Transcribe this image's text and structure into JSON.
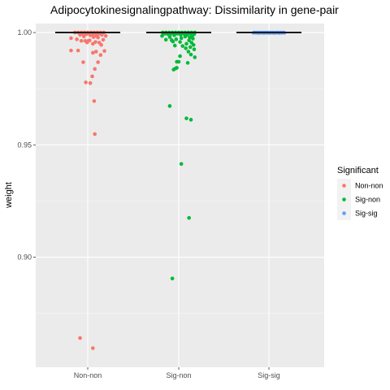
{
  "chart_data": {
    "type": "scatter",
    "title": "Adipocytokinesignalingpathway: Dissimilarity in gene-pair",
    "xlabel": "",
    "ylabel": "weight",
    "categories": [
      "Non-non",
      "Sig-non",
      "Sig-sig"
    ],
    "ylim": [
      0.851,
      1.004
    ],
    "yticks": [
      0.9,
      0.95,
      1.0
    ],
    "ytick_labels": [
      "0.90",
      "0.95",
      "1.00"
    ],
    "grid": true,
    "legend": {
      "title": "Significant",
      "placement": "right"
    },
    "medians": [
      1.0,
      1.0,
      1.0
    ],
    "series": [
      {
        "name": "Non-non",
        "color": "#F8766D",
        "category": "Non-non",
        "points": [
          [
            -0.05,
            1.0
          ],
          [
            0.0,
            1.0
          ],
          [
            0.05,
            1.0
          ],
          [
            0.1,
            1.0
          ],
          [
            0.15,
            1.0
          ],
          [
            -0.15,
            1.0
          ],
          [
            -0.1,
            1.0
          ],
          [
            0.2,
            1.0
          ],
          [
            -0.2,
            1.0
          ],
          [
            0.25,
            1.0
          ],
          [
            0.02,
            0.9995
          ],
          [
            -0.08,
            0.9995
          ],
          [
            0.12,
            0.9995
          ],
          [
            0.18,
            0.9995
          ],
          [
            -0.02,
            0.9993
          ],
          [
            0.07,
            0.9993
          ],
          [
            -0.12,
            0.999
          ],
          [
            0.22,
            0.999
          ],
          [
            0.04,
            0.9988
          ],
          [
            0.14,
            0.9985
          ],
          [
            0.28,
            0.9985
          ],
          [
            -0.06,
            0.9983
          ],
          [
            0.09,
            0.998
          ],
          [
            0.16,
            0.9978
          ],
          [
            -0.26,
            0.9975
          ],
          [
            -0.17,
            0.997
          ],
          [
            0.24,
            0.9968
          ],
          [
            0.03,
            0.9965
          ],
          [
            -0.1,
            0.9963
          ],
          [
            -0.04,
            0.9963
          ],
          [
            0.01,
            0.9963
          ],
          [
            0.12,
            0.9958
          ],
          [
            -0.01,
            0.9956
          ],
          [
            0.18,
            0.9955
          ],
          [
            0.08,
            0.995
          ],
          [
            0.21,
            0.9945
          ],
          [
            -0.26,
            0.992
          ],
          [
            -0.15,
            0.992
          ],
          [
            0.26,
            0.9918
          ],
          [
            0.13,
            0.9915
          ],
          [
            0.08,
            0.991
          ],
          [
            0.2,
            0.99
          ],
          [
            -0.07,
            0.9868
          ],
          [
            0.16,
            0.9868
          ],
          [
            0.11,
            0.9838
          ],
          [
            0.07,
            0.9805
          ],
          [
            -0.03,
            0.9778
          ],
          [
            0.04,
            0.9775
          ],
          [
            0.1,
            0.9695
          ],
          [
            0.11,
            0.9548
          ],
          [
            -0.12,
            0.864
          ],
          [
            0.08,
            0.8595
          ]
        ]
      },
      {
        "name": "Sig-non",
        "color": "#00BA38",
        "category": "Sig-non",
        "points": [
          [
            -0.25,
            1.0
          ],
          [
            -0.2,
            1.0
          ],
          [
            -0.15,
            1.0
          ],
          [
            -0.1,
            1.0
          ],
          [
            -0.05,
            1.0
          ],
          [
            0.0,
            1.0
          ],
          [
            0.05,
            1.0
          ],
          [
            0.1,
            1.0
          ],
          [
            0.15,
            1.0
          ],
          [
            0.2,
            1.0
          ],
          [
            0.25,
            1.0
          ],
          [
            -0.22,
            0.9995
          ],
          [
            -0.12,
            0.9995
          ],
          [
            -0.02,
            0.9995
          ],
          [
            0.08,
            0.9995
          ],
          [
            0.18,
            0.9995
          ],
          [
            0.24,
            0.9993
          ],
          [
            -0.17,
            0.9993
          ],
          [
            0.03,
            0.999
          ],
          [
            0.13,
            0.999
          ],
          [
            -0.07,
            0.9988
          ],
          [
            0.21,
            0.9985
          ],
          [
            -0.26,
            0.9985
          ],
          [
            0.1,
            0.9982
          ],
          [
            -0.14,
            0.998
          ],
          [
            0.17,
            0.9978
          ],
          [
            0.04,
            0.9975
          ],
          [
            0.22,
            0.9973
          ],
          [
            -0.04,
            0.997
          ],
          [
            -0.2,
            0.9968
          ],
          [
            -0.11,
            0.9966
          ],
          [
            0.16,
            0.9965
          ],
          [
            -0.09,
            0.996
          ],
          [
            0.02,
            0.9958
          ],
          [
            0.2,
            0.9955
          ],
          [
            0.12,
            0.995
          ],
          [
            0.23,
            0.9945
          ],
          [
            -0.06,
            0.9942
          ],
          [
            0.06,
            0.994
          ],
          [
            0.18,
            0.9935
          ],
          [
            0.11,
            0.993
          ],
          [
            0.24,
            0.9925
          ],
          [
            0.15,
            0.9915
          ],
          [
            0.19,
            0.9902
          ],
          [
            0.02,
            0.9895
          ],
          [
            0.25,
            0.989
          ],
          [
            -0.03,
            0.987
          ],
          [
            0.0,
            0.987
          ],
          [
            0.14,
            0.9865
          ],
          [
            -0.05,
            0.984
          ],
          [
            -0.08,
            0.9835
          ],
          [
            -0.03,
            0.9843
          ],
          [
            -0.14,
            0.9673
          ],
          [
            0.12,
            0.9618
          ],
          [
            0.19,
            0.9612
          ],
          [
            0.04,
            0.9415
          ],
          [
            0.16,
            0.9175
          ],
          [
            -0.1,
            0.8905
          ]
        ]
      },
      {
        "name": "Sig-sig",
        "color": "#619CFF",
        "category": "Sig-sig",
        "points": [
          [
            -0.22,
            1.0
          ],
          [
            -0.18,
            1.0
          ],
          [
            -0.14,
            1.0
          ],
          [
            -0.1,
            1.0
          ],
          [
            -0.06,
            1.0
          ],
          [
            -0.02,
            1.0
          ],
          [
            0.02,
            1.0
          ],
          [
            0.06,
            1.0
          ],
          [
            0.1,
            1.0
          ],
          [
            0.14,
            1.0
          ],
          [
            0.18,
            1.0
          ],
          [
            0.22,
            1.0
          ],
          [
            -0.2,
            0.9999
          ],
          [
            -0.12,
            0.9999
          ],
          [
            -0.04,
            0.9999
          ],
          [
            0.04,
            0.9999
          ],
          [
            0.12,
            0.9999
          ],
          [
            0.2,
            0.9999
          ],
          [
            -0.08,
            0.9998
          ],
          [
            0.08,
            0.9998
          ],
          [
            0.0,
            0.9998
          ],
          [
            0.16,
            0.9998
          ],
          [
            -0.16,
            0.9998
          ],
          [
            0.24,
            0.9999
          ],
          [
            -0.24,
            0.9999
          ]
        ]
      }
    ]
  }
}
